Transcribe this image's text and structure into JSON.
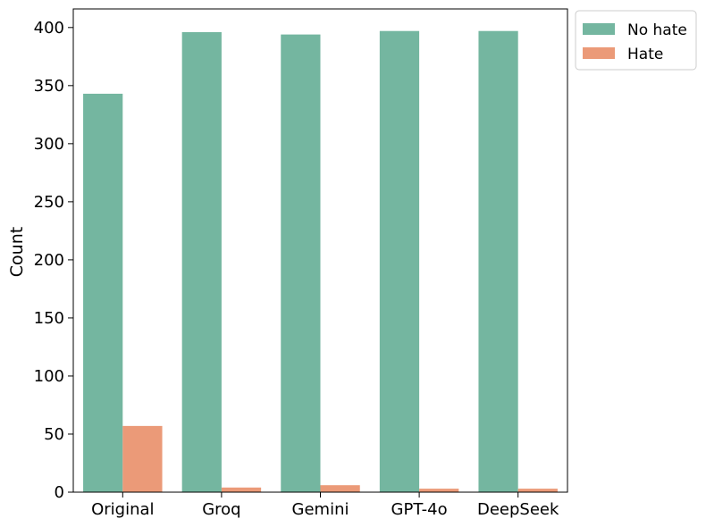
{
  "chart_data": {
    "type": "bar",
    "title": "",
    "xlabel": "",
    "ylabel": "Count",
    "categories": [
      "Original",
      "Groq",
      "Gemini",
      "GPT-4o",
      "DeepSeek"
    ],
    "series": [
      {
        "name": "No hate",
        "color": "#74b6a0",
        "values": [
          343,
          396,
          394,
          397,
          397
        ]
      },
      {
        "name": "Hate",
        "color": "#eb9a78",
        "values": [
          57,
          4,
          6,
          3,
          3
        ]
      }
    ],
    "ylim": [
      0,
      416
    ],
    "yticks": [
      0,
      50,
      100,
      150,
      200,
      250,
      300,
      350,
      400
    ],
    "grid": false,
    "legend_position": "outside-top-right"
  }
}
